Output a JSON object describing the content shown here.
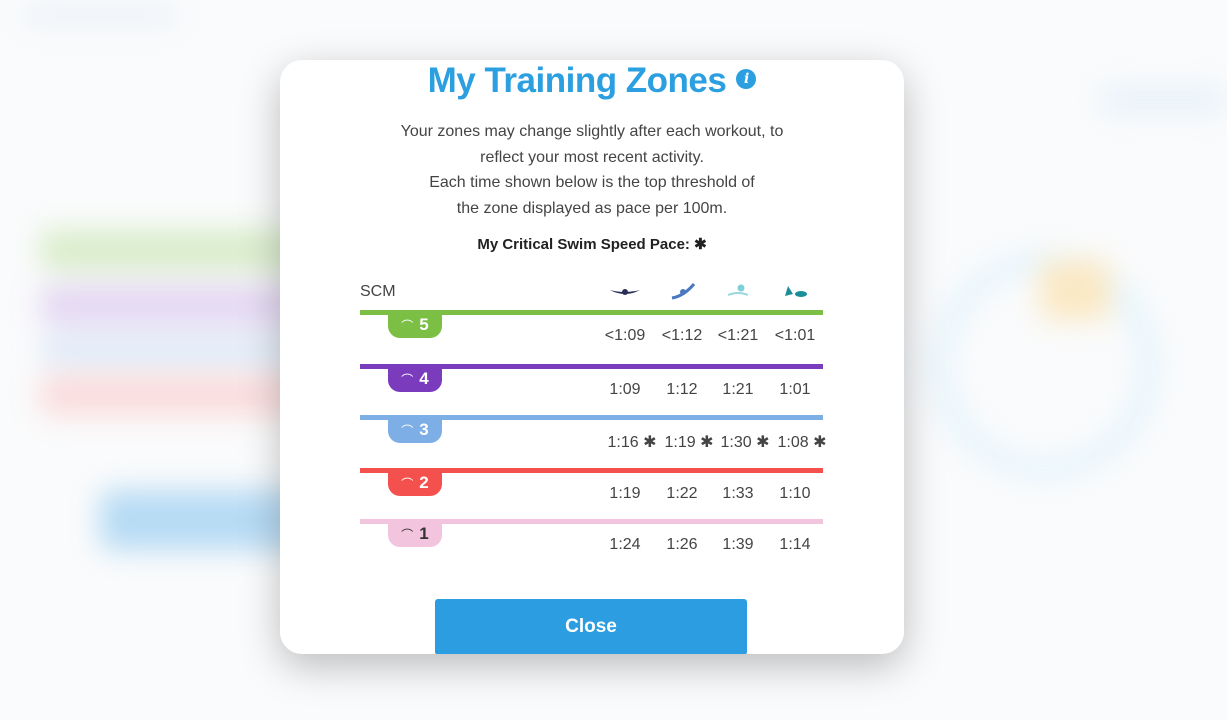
{
  "modal": {
    "title": "My Training Zones",
    "info_icon": "i",
    "description": [
      "Your zones may change slightly after each workout, to",
      "reflect your most recent activity.",
      "Each time shown below is the top threshold of",
      "the zone displayed as pace per 100m."
    ],
    "css_label": "My Critical Swim Speed Pace: ✱",
    "pool_unit": "SCM",
    "strokes": [
      "butterfly-icon",
      "backstroke-icon",
      "breaststroke-icon",
      "freestyle-icon"
    ],
    "zones": [
      {
        "number": "5",
        "color": "#7bbf44",
        "values": [
          "<1:09",
          "<1:12",
          "<1:21",
          "<1:01"
        ]
      },
      {
        "number": "4",
        "color": "#7b3bbd",
        "values": [
          "1:09",
          "1:12",
          "1:21",
          "1:01"
        ]
      },
      {
        "number": "3",
        "color": "#7daee6",
        "values": [
          "1:16 ✱",
          "1:19 ✱",
          "1:30 ✱",
          "1:08 ✱"
        ]
      },
      {
        "number": "2",
        "color": "#f4514e",
        "values": [
          "1:19",
          "1:22",
          "1:33",
          "1:10"
        ]
      },
      {
        "number": "1",
        "color": "#f2c4de",
        "values": [
          "1:24",
          "1:26",
          "1:39",
          "1:14"
        ]
      }
    ],
    "close_label": "Close",
    "accent": "#2b9de0"
  }
}
